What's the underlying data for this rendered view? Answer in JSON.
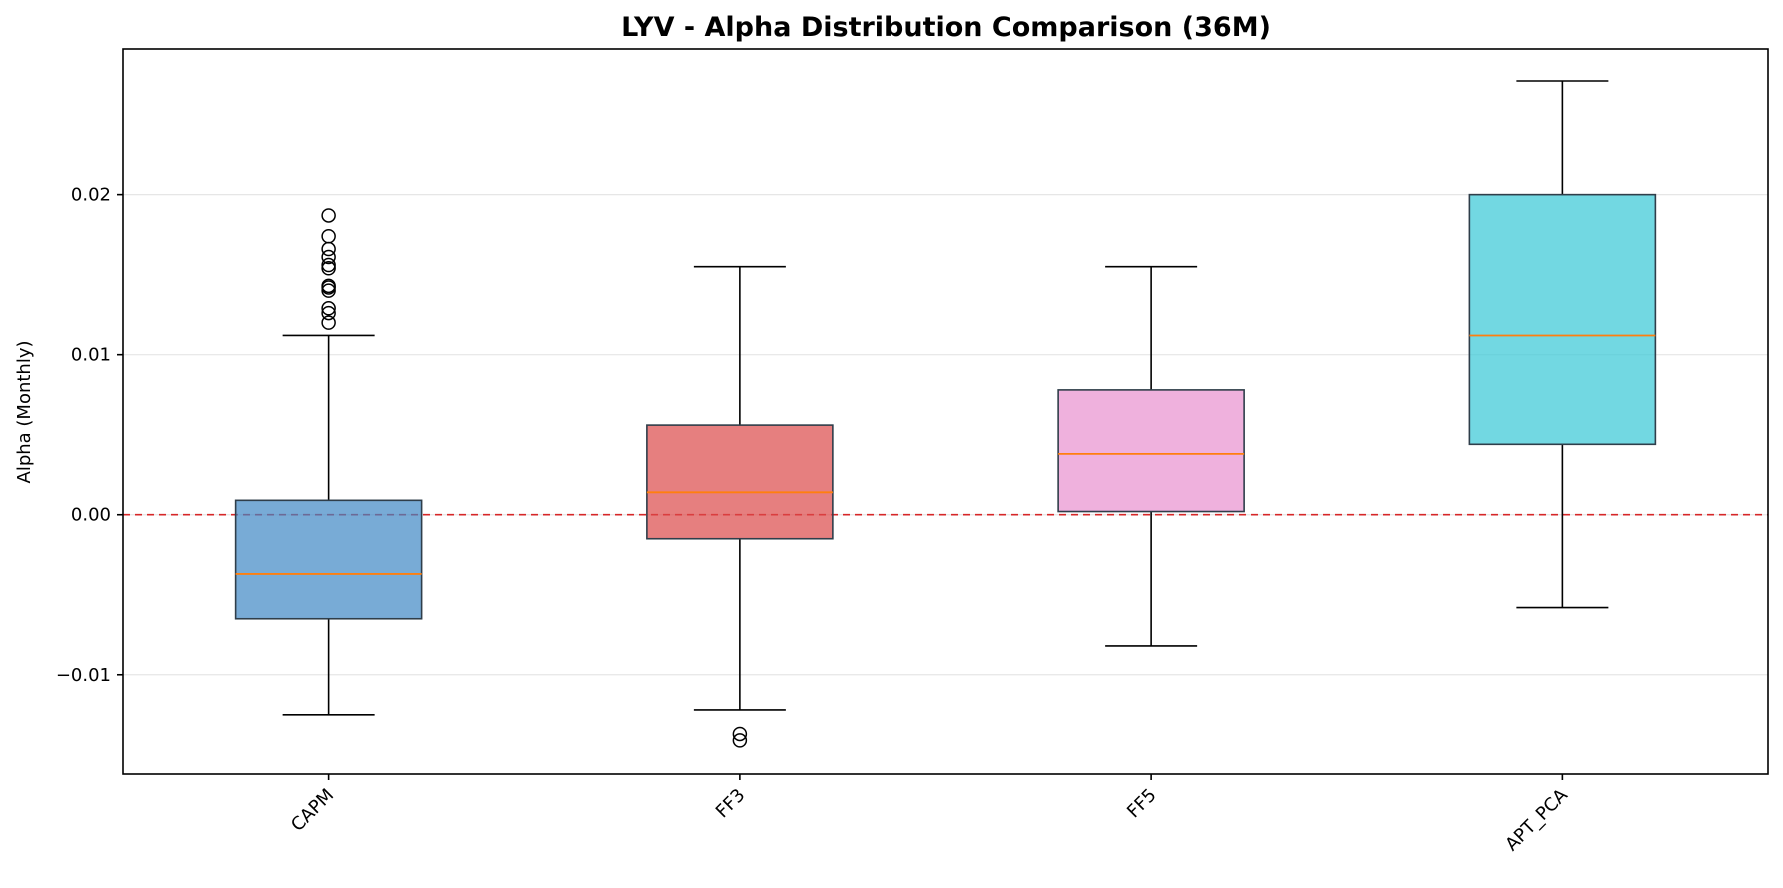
{
  "chart_data": {
    "type": "box",
    "title": "LYV - Alpha Distribution Comparison (36M)",
    "xlabel": "",
    "ylabel": "Alpha (Monthly)",
    "ylim": [
      -0.0162,
      0.0291
    ],
    "yticks": [
      -0.01,
      0.0,
      0.01,
      0.02
    ],
    "ytick_labels": [
      "−0.01",
      "0.00",
      "0.01",
      "0.02"
    ],
    "grid": "y",
    "reference_line": {
      "y": 0.0,
      "style": "dashed",
      "color": "#d62728"
    },
    "categories": [
      "CAPM",
      "FF3",
      "FF5",
      "APT_PCA"
    ],
    "series": [
      {
        "category": "CAPM",
        "whisker_low": -0.0125,
        "q1": -0.0065,
        "median": -0.0037,
        "q3": 0.0009,
        "whisker_high": 0.0112,
        "outliers": [
          0.012,
          0.0126,
          0.0129,
          0.014,
          0.0142,
          0.0143,
          0.0154,
          0.0156,
          0.0161,
          0.0166,
          0.0174,
          0.0187
        ],
        "color": "#3f88c5"
      },
      {
        "category": "FF3",
        "whisker_low": -0.0122,
        "q1": -0.0015,
        "median": 0.0014,
        "q3": 0.0056,
        "whisker_high": 0.0155,
        "outliers": [
          -0.0137,
          -0.0141
        ],
        "color": "#dc4848"
      },
      {
        "category": "FF5",
        "whisker_low": -0.0082,
        "q1": 0.0002,
        "median": 0.0038,
        "q3": 0.0078,
        "whisker_high": 0.0155,
        "outliers": [],
        "color": "#e890cf"
      },
      {
        "category": "APT_PCA",
        "whisker_low": -0.0058,
        "q1": 0.0044,
        "median": 0.0112,
        "q3": 0.02,
        "whisker_high": 0.0271,
        "outliers": [],
        "color": "#36c8d6"
      }
    ]
  }
}
